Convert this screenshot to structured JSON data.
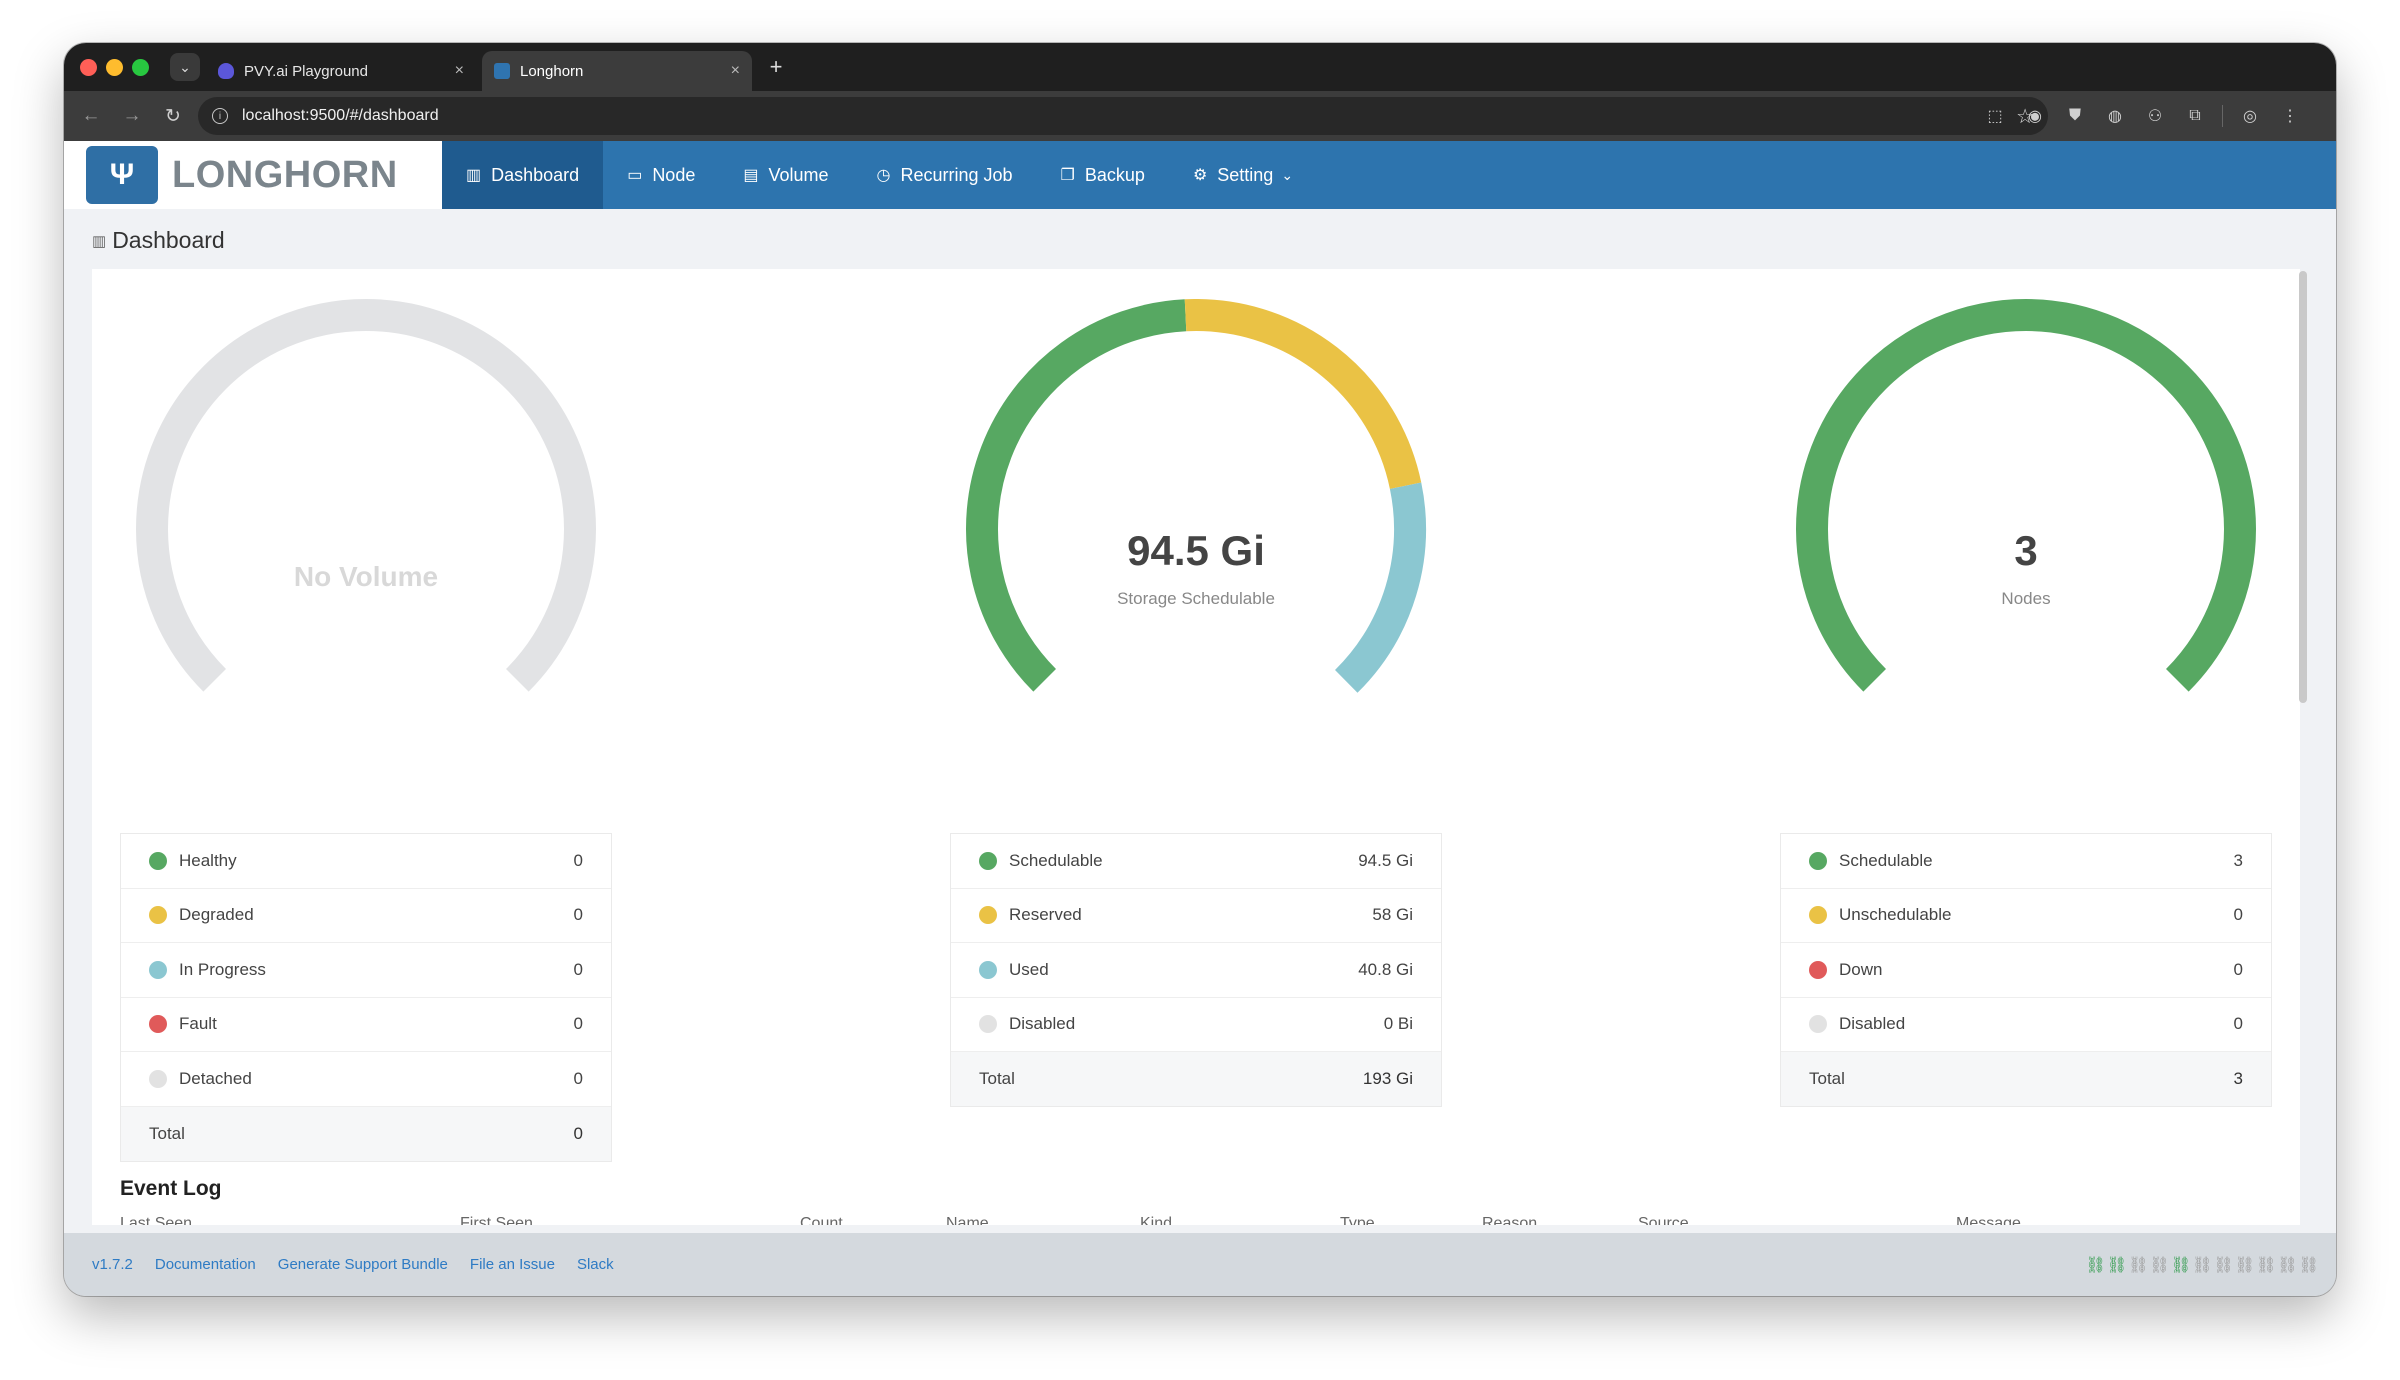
{
  "browser": {
    "tabs": [
      {
        "title": "PVY.ai Playground",
        "active": false
      },
      {
        "title": "Longhorn",
        "active": true
      }
    ],
    "url": "localhost:9500/#/dashboard",
    "new_tab_glyph": "+",
    "close_glyph": "×"
  },
  "app": {
    "logo_text": "LONGHORN",
    "menu": [
      {
        "label": "Dashboard",
        "icon": "bar-chart-icon",
        "active": true
      },
      {
        "label": "Node",
        "icon": "laptop-icon",
        "active": false
      },
      {
        "label": "Volume",
        "icon": "database-icon",
        "active": false
      },
      {
        "label": "Recurring Job",
        "icon": "history-icon",
        "active": false
      },
      {
        "label": "Backup",
        "icon": "copy-icon",
        "active": false
      },
      {
        "label": "Setting",
        "icon": "gear-icon",
        "active": false
      }
    ]
  },
  "page": {
    "title": "Dashboard"
  },
  "volume_panel": {
    "center_text": "No Volume",
    "legend": [
      {
        "label": "Healthy",
        "value": "0",
        "color": "#57a862"
      },
      {
        "label": "Degraded",
        "value": "0",
        "color": "#eac245"
      },
      {
        "label": "In Progress",
        "value": "0",
        "color": "#8bc7d1"
      },
      {
        "label": "Fault",
        "value": "0",
        "color": "#e05a5a"
      },
      {
        "label": "Detached",
        "value": "0",
        "color": "#e2e2e2"
      }
    ],
    "total_label": "Total",
    "total_value": "0"
  },
  "storage_panel": {
    "value": "94.5 Gi",
    "label": "Storage Schedulable",
    "gauge_fractions": {
      "schedulable": 0.4896,
      "reserved": 0.3005,
      "used": 0.2114,
      "disabled": 0
    },
    "legend": [
      {
        "label": "Schedulable",
        "value": "94.5 Gi",
        "color": "#57a862"
      },
      {
        "label": "Reserved",
        "value": "58 Gi",
        "color": "#eac245"
      },
      {
        "label": "Used",
        "value": "40.8 Gi",
        "color": "#8bc7d1"
      },
      {
        "label": "Disabled",
        "value": "0 Bi",
        "color": "#e2e2e2"
      }
    ],
    "total_label": "Total",
    "total_value": "193 Gi"
  },
  "node_panel": {
    "value": "3",
    "label": "Nodes",
    "gauge_fractions": {
      "schedulable": 1.0
    },
    "legend": [
      {
        "label": "Schedulable",
        "value": "3",
        "color": "#57a862"
      },
      {
        "label": "Unschedulable",
        "value": "0",
        "color": "#eac245"
      },
      {
        "label": "Down",
        "value": "0",
        "color": "#e05a5a"
      },
      {
        "label": "Disabled",
        "value": "0",
        "color": "#e2e2e2"
      }
    ],
    "total_label": "Total",
    "total_value": "3"
  },
  "event_log": {
    "title": "Event Log",
    "columns": [
      "Last Seen",
      "First Seen",
      "Count",
      "Name",
      "Kind",
      "Type",
      "Reason",
      "Source",
      "Message"
    ]
  },
  "footer": {
    "version": "v1.7.2",
    "links": [
      "Documentation",
      "Generate Support Bundle",
      "File an Issue",
      "Slack"
    ]
  },
  "colors": {
    "header": "#2d74ae",
    "header_active": "#1f5b8f",
    "gauge_empty": "#e2e3e5"
  }
}
